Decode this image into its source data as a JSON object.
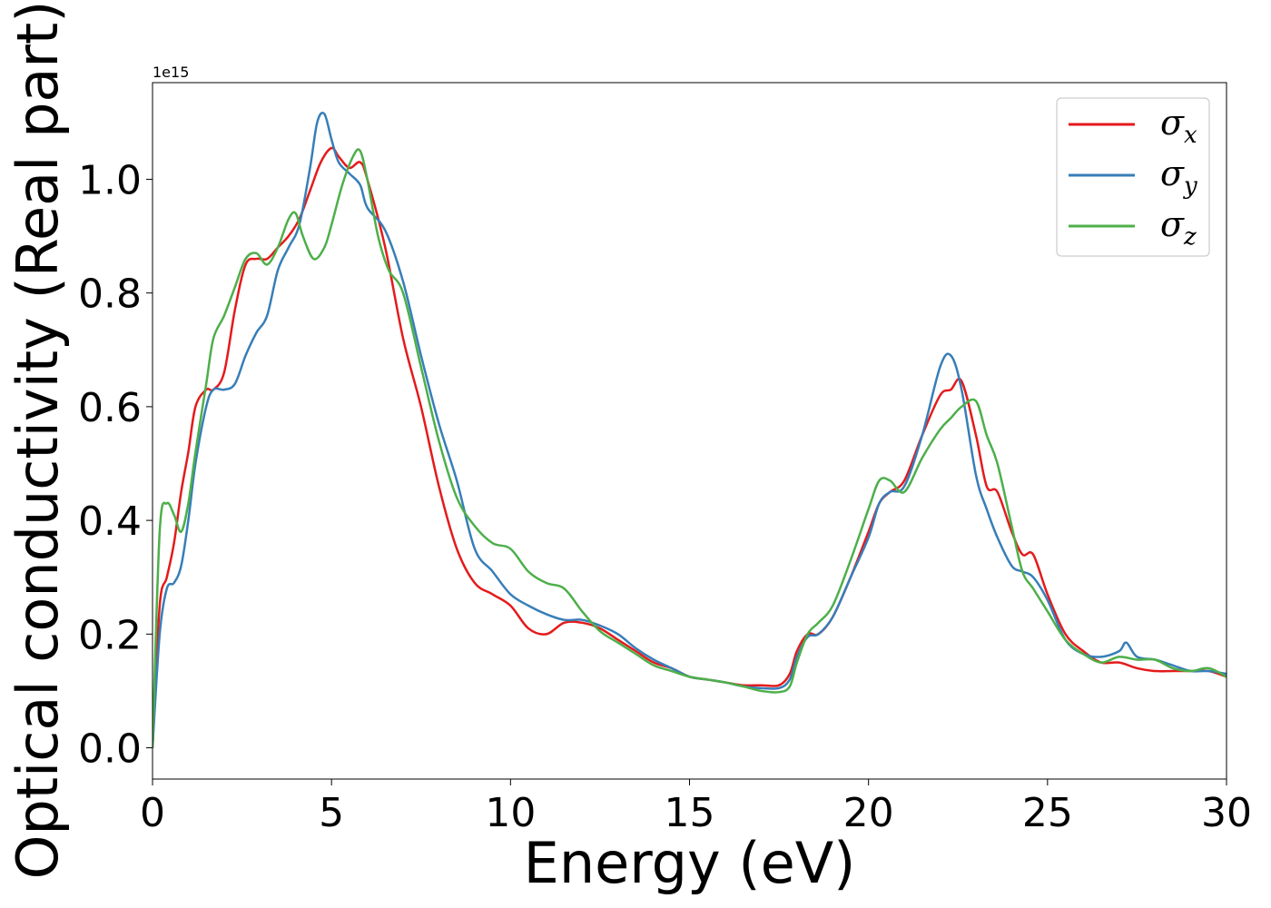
{
  "chart_data": {
    "type": "line",
    "xlabel": "Energy (eV)",
    "ylabel": "Optical conductivity (Real part)",
    "y_offset_text": "1e15",
    "xlim": [
      0,
      30
    ],
    "ylim": [
      -0.055,
      1.17
    ],
    "x_ticks": [
      0,
      5,
      10,
      15,
      20,
      25,
      30
    ],
    "x_tick_labels": [
      "0",
      "5",
      "10",
      "15",
      "20",
      "25",
      "30"
    ],
    "y_ticks": [
      0.0,
      0.2,
      0.4,
      0.6,
      0.8,
      1.0
    ],
    "y_tick_labels": [
      "0.0",
      "0.2",
      "0.4",
      "0.6",
      "0.8",
      "1.0"
    ],
    "grid": false,
    "legend_position": "top-right",
    "series": [
      {
        "name": "σ",
        "sub": "x",
        "color": "#e41a1c",
        "x": [
          0,
          0.2,
          0.4,
          0.6,
          0.8,
          1.0,
          1.2,
          1.5,
          1.7,
          2.0,
          2.3,
          2.6,
          2.9,
          3.2,
          3.5,
          3.8,
          4.1,
          4.4,
          4.7,
          5.0,
          5.2,
          5.5,
          5.8,
          6.0,
          6.5,
          7.0,
          7.5,
          8.0,
          8.5,
          9.0,
          9.5,
          10.0,
          10.5,
          11.0,
          11.5,
          12.0,
          12.5,
          13.0,
          13.5,
          14.0,
          14.5,
          15.0,
          15.5,
          16.0,
          16.5,
          17.0,
          17.5,
          17.8,
          18.0,
          18.3,
          18.6,
          19.0,
          19.5,
          20.0,
          20.3,
          20.6,
          21.0,
          21.5,
          22.0,
          22.3,
          22.6,
          23.0,
          23.3,
          23.6,
          24.0,
          24.3,
          24.6,
          25.0,
          25.5,
          26.0,
          26.5,
          27.0,
          27.5,
          28.0,
          28.5,
          29.0,
          29.5,
          30.0
        ],
        "y": [
          0.0,
          0.25,
          0.3,
          0.36,
          0.45,
          0.52,
          0.6,
          0.63,
          0.63,
          0.66,
          0.77,
          0.85,
          0.86,
          0.86,
          0.88,
          0.9,
          0.93,
          0.98,
          1.03,
          1.055,
          1.04,
          1.02,
          1.03,
          1.0,
          0.88,
          0.72,
          0.6,
          0.46,
          0.35,
          0.29,
          0.27,
          0.25,
          0.21,
          0.2,
          0.22,
          0.22,
          0.21,
          0.19,
          0.17,
          0.15,
          0.14,
          0.125,
          0.12,
          0.115,
          0.11,
          0.11,
          0.11,
          0.13,
          0.17,
          0.2,
          0.2,
          0.23,
          0.3,
          0.38,
          0.43,
          0.45,
          0.47,
          0.55,
          0.62,
          0.63,
          0.645,
          0.55,
          0.46,
          0.45,
          0.38,
          0.34,
          0.34,
          0.27,
          0.2,
          0.17,
          0.15,
          0.15,
          0.14,
          0.135,
          0.135,
          0.135,
          0.135,
          0.125
        ]
      },
      {
        "name": "σ",
        "sub": "y",
        "color": "#377eb8",
        "x": [
          0,
          0.2,
          0.4,
          0.6,
          0.8,
          1.0,
          1.2,
          1.5,
          1.7,
          2.0,
          2.3,
          2.6,
          2.9,
          3.2,
          3.5,
          3.8,
          4.1,
          4.4,
          4.6,
          4.8,
          5.0,
          5.2,
          5.5,
          5.8,
          6.0,
          6.5,
          7.0,
          7.5,
          8.0,
          8.5,
          9.0,
          9.5,
          10.0,
          10.5,
          11.0,
          11.5,
          12.0,
          12.5,
          13.0,
          13.5,
          14.0,
          14.5,
          15.0,
          15.5,
          16.0,
          16.5,
          17.0,
          17.5,
          17.8,
          18.0,
          18.3,
          18.6,
          19.0,
          19.5,
          20.0,
          20.3,
          20.6,
          21.0,
          21.5,
          22.0,
          22.3,
          22.6,
          23.0,
          23.3,
          23.6,
          24.0,
          24.3,
          24.6,
          25.0,
          25.5,
          26.0,
          26.5,
          27.0,
          27.2,
          27.5,
          28.0,
          28.5,
          29.0,
          29.5,
          30.0
        ],
        "y": [
          0.0,
          0.2,
          0.28,
          0.29,
          0.32,
          0.4,
          0.5,
          0.6,
          0.63,
          0.63,
          0.64,
          0.69,
          0.73,
          0.76,
          0.84,
          0.88,
          0.92,
          1.02,
          1.1,
          1.115,
          1.07,
          1.03,
          1.01,
          0.99,
          0.95,
          0.91,
          0.82,
          0.69,
          0.57,
          0.47,
          0.35,
          0.31,
          0.27,
          0.25,
          0.235,
          0.225,
          0.225,
          0.215,
          0.2,
          0.175,
          0.155,
          0.14,
          0.125,
          0.12,
          0.115,
          0.108,
          0.105,
          0.105,
          0.12,
          0.16,
          0.195,
          0.2,
          0.23,
          0.3,
          0.37,
          0.43,
          0.45,
          0.46,
          0.55,
          0.67,
          0.69,
          0.63,
          0.48,
          0.42,
          0.37,
          0.32,
          0.31,
          0.3,
          0.26,
          0.19,
          0.165,
          0.16,
          0.17,
          0.185,
          0.16,
          0.155,
          0.145,
          0.135,
          0.135,
          0.13
        ]
      },
      {
        "name": "σ",
        "sub": "z",
        "color": "#4daf4a",
        "x": [
          0,
          0.2,
          0.4,
          0.6,
          0.8,
          1.0,
          1.2,
          1.5,
          1.7,
          2.0,
          2.3,
          2.6,
          2.9,
          3.2,
          3.5,
          3.8,
          4.0,
          4.2,
          4.5,
          4.8,
          5.0,
          5.3,
          5.6,
          5.8,
          6.0,
          6.3,
          6.6,
          7.0,
          7.5,
          8.0,
          8.5,
          9.0,
          9.5,
          10.0,
          10.5,
          11.0,
          11.5,
          12.0,
          12.5,
          13.0,
          13.5,
          14.0,
          14.5,
          15.0,
          15.5,
          16.0,
          16.5,
          17.0,
          17.5,
          17.8,
          18.0,
          18.3,
          18.6,
          19.0,
          19.5,
          20.0,
          20.3,
          20.6,
          21.0,
          21.5,
          22.0,
          22.3,
          22.6,
          23.0,
          23.3,
          23.6,
          24.0,
          24.3,
          24.6,
          25.0,
          25.5,
          26.0,
          26.5,
          27.0,
          27.5,
          28.0,
          28.5,
          29.0,
          29.5,
          30.0
        ],
        "y": [
          0.0,
          0.38,
          0.43,
          0.41,
          0.38,
          0.43,
          0.52,
          0.64,
          0.72,
          0.76,
          0.81,
          0.86,
          0.87,
          0.85,
          0.88,
          0.93,
          0.94,
          0.9,
          0.86,
          0.88,
          0.92,
          0.99,
          1.04,
          1.05,
          1.0,
          0.9,
          0.84,
          0.8,
          0.67,
          0.54,
          0.44,
          0.39,
          0.36,
          0.35,
          0.31,
          0.29,
          0.28,
          0.24,
          0.205,
          0.185,
          0.165,
          0.145,
          0.135,
          0.125,
          0.12,
          0.115,
          0.108,
          0.1,
          0.098,
          0.108,
          0.15,
          0.2,
          0.22,
          0.25,
          0.33,
          0.42,
          0.47,
          0.47,
          0.45,
          0.51,
          0.56,
          0.58,
          0.6,
          0.61,
          0.55,
          0.5,
          0.39,
          0.31,
          0.28,
          0.24,
          0.19,
          0.165,
          0.15,
          0.16,
          0.155,
          0.155,
          0.14,
          0.135,
          0.14,
          0.125
        ]
      }
    ]
  }
}
